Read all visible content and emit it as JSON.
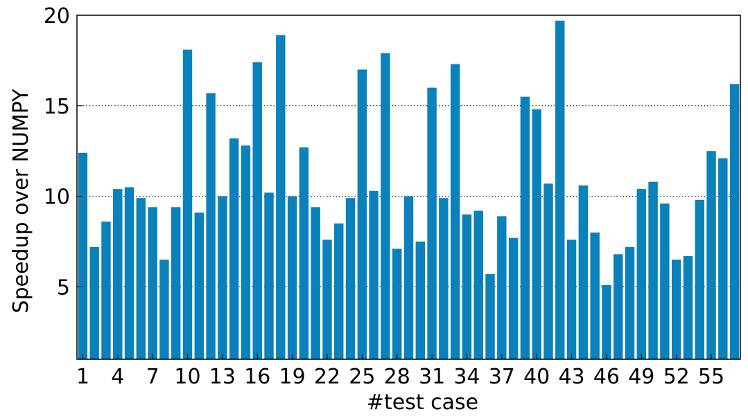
{
  "chart_data": {
    "type": "bar",
    "xlabel": "#test case",
    "ylabel": "Speedup over NUMPY",
    "ylim": [
      1,
      20
    ],
    "yticks": [
      5,
      10,
      15,
      20
    ],
    "xtick_labels": [
      "1",
      "4",
      "7",
      "10",
      "13",
      "16",
      "19",
      "22",
      "25",
      "28",
      "31",
      "34",
      "37",
      "40",
      "43",
      "46",
      "49",
      "52",
      "55"
    ],
    "xtick_positions": [
      1,
      4,
      7,
      10,
      13,
      16,
      19,
      22,
      25,
      28,
      31,
      34,
      37,
      40,
      43,
      46,
      49,
      52,
      55
    ],
    "grid": "y-dotted",
    "bar_color": "#0a81bb",
    "categories": [
      1,
      2,
      3,
      4,
      5,
      6,
      7,
      8,
      9,
      10,
      11,
      12,
      13,
      14,
      15,
      16,
      17,
      18,
      19,
      20,
      21,
      22,
      23,
      24,
      25,
      26,
      27,
      28,
      29,
      30,
      31,
      32,
      33,
      34,
      35,
      36,
      37,
      38,
      39,
      40,
      41,
      42,
      43,
      44,
      45,
      46,
      47,
      48,
      49,
      50,
      51,
      52,
      53,
      54,
      55,
      56,
      57
    ],
    "values": [
      12.4,
      7.2,
      8.6,
      10.4,
      10.5,
      9.9,
      9.4,
      6.5,
      9.4,
      18.1,
      9.1,
      15.7,
      10.0,
      13.2,
      12.8,
      17.4,
      10.2,
      18.9,
      10.0,
      12.7,
      9.4,
      7.6,
      8.5,
      9.9,
      17.0,
      10.3,
      17.9,
      7.1,
      10.0,
      7.5,
      16.0,
      9.9,
      17.3,
      9.0,
      9.2,
      5.7,
      8.9,
      7.7,
      15.5,
      14.8,
      10.7,
      19.7,
      7.6,
      10.6,
      8.0,
      5.1,
      6.8,
      7.2,
      10.4,
      10.8,
      9.6,
      6.5,
      6.7,
      9.8,
      12.5,
      12.1,
      16.2
    ]
  }
}
